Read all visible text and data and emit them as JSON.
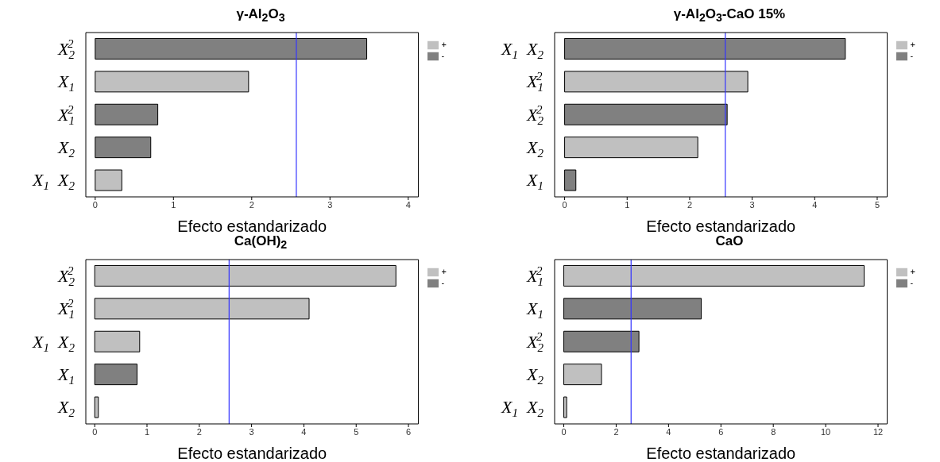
{
  "chart_data": [
    {
      "type": "bar",
      "orientation": "horizontal",
      "stacked": true,
      "title": "γ-Al$_{2}$O$_{3}$",
      "xlabel": "Efecto estandarizado",
      "categories": [
        "X$_{2}$$^{2}$",
        "X$_{1}$",
        "X$_{1}$$^{2}$",
        "X$_{2}$",
        "X$_{1}$  X$_{2}$"
      ],
      "series": [
        {
          "name": "+",
          "color": "#c0c0c0",
          "values": [
            null,
            1.96,
            null,
            null,
            0.34
          ]
        },
        {
          "name": "-",
          "color": "#808080",
          "values": [
            3.47,
            null,
            0.8,
            0.71,
            null
          ]
        }
      ],
      "xlim": [
        -0.12,
        4.13
      ],
      "xticks": [
        0,
        1,
        2,
        3,
        4
      ],
      "ref_lines": [
        {
          "axis": "x",
          "value": 2.57,
          "color": "#3333ff"
        }
      ],
      "legend": "top right"
    },
    {
      "type": "bar",
      "orientation": "horizontal",
      "stacked": true,
      "title": "γ-Al$_{2}$O$_{3}$-CaO 15%",
      "xlabel": "Efecto estandarizado",
      "categories": [
        "X$_{1}$  X$_{2}$",
        "X$_{1}$$^{2}$",
        "X$_{2}$$^{2}$",
        "X$_{2}$",
        "X$_{1}$"
      ],
      "series": [
        {
          "name": "+",
          "color": "#c0c0c0",
          "values": [
            null,
            2.93,
            null,
            2.13,
            null
          ]
        },
        {
          "name": "-",
          "color": "#808080",
          "values": [
            4.49,
            null,
            2.6,
            null,
            0.18
          ]
        }
      ],
      "xlim": [
        -0.16,
        5.16
      ],
      "xticks": [
        0,
        1,
        2,
        3,
        4,
        5
      ],
      "ref_lines": [
        {
          "axis": "x",
          "value": 2.57,
          "color": "#3333ff"
        }
      ],
      "legend": "top right"
    },
    {
      "type": "bar",
      "orientation": "horizontal",
      "stacked": true,
      "title": "Ca(OH)$_{2}$",
      "xlabel": "Efecto estandarizado",
      "categories": [
        "X$_{2}$$^{2}$",
        "X$_{1}$$^{2}$",
        "X$_{1}$  X$_{2}$",
        "X$_{1}$",
        "X$_{2}$"
      ],
      "series": [
        {
          "name": "+",
          "color": "#c0c0c0",
          "values": [
            5.76,
            4.1,
            0.86,
            null,
            0.07
          ]
        },
        {
          "name": "-",
          "color": "#808080",
          "values": [
            null,
            null,
            null,
            0.81,
            null
          ]
        }
      ],
      "xlim": [
        -0.17,
        6.19
      ],
      "xticks": [
        0,
        1,
        2,
        3,
        4,
        5,
        6
      ],
      "ref_lines": [
        {
          "axis": "x",
          "value": 2.57,
          "color": "#3333ff"
        }
      ],
      "legend": "top right"
    },
    {
      "type": "bar",
      "orientation": "horizontal",
      "stacked": true,
      "title": "CaO",
      "xlabel": "Efecto estandarizado",
      "categories": [
        "X$_{1}$$^{2}$",
        "X$_{1}$",
        "X$_{2}$$^{2}$",
        "X$_{2}$",
        "X$_{1}$  X$_{2}$"
      ],
      "series": [
        {
          "name": "+",
          "color": "#c0c0c0",
          "values": [
            11.47,
            null,
            null,
            1.44,
            0.11
          ]
        },
        {
          "name": "-",
          "color": "#808080",
          "values": [
            null,
            5.25,
            2.87,
            null,
            null
          ]
        }
      ],
      "xlim": [
        -0.35,
        12.35
      ],
      "xticks": [
        0,
        2,
        4,
        6,
        8,
        10,
        12
      ],
      "ref_lines": [
        {
          "axis": "x",
          "value": 2.57,
          "color": "#3333ff"
        }
      ],
      "legend": "top right"
    }
  ]
}
